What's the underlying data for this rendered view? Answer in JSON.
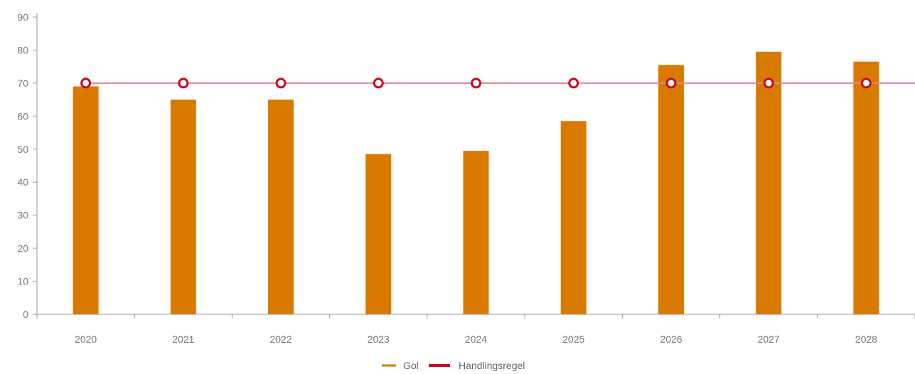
{
  "colors": {
    "bar": "#D97A00",
    "line": "#CC0A1E",
    "line_stroke": "#D98A93",
    "axis": "#999999",
    "tick_text": "#777777"
  },
  "chart_data": {
    "type": "bar",
    "categories": [
      "2020",
      "2021",
      "2022",
      "2023",
      "2024",
      "2025",
      "2026",
      "2027",
      "2028"
    ],
    "series": [
      {
        "name": "Gol",
        "type": "bar",
        "values": [
          69,
          65,
          65,
          48.5,
          49.5,
          58.5,
          75.5,
          79.5,
          76.5
        ]
      },
      {
        "name": "Handlingsregel",
        "type": "line",
        "values": [
          70,
          70,
          70,
          70,
          70,
          70,
          70,
          70,
          70
        ]
      }
    ],
    "ylim": [
      0,
      90
    ],
    "yticks": [
      "0",
      "10",
      "20",
      "30",
      "40",
      "50",
      "60",
      "70",
      "80",
      "90"
    ],
    "legend_position": "bottom-center",
    "grid": false
  }
}
